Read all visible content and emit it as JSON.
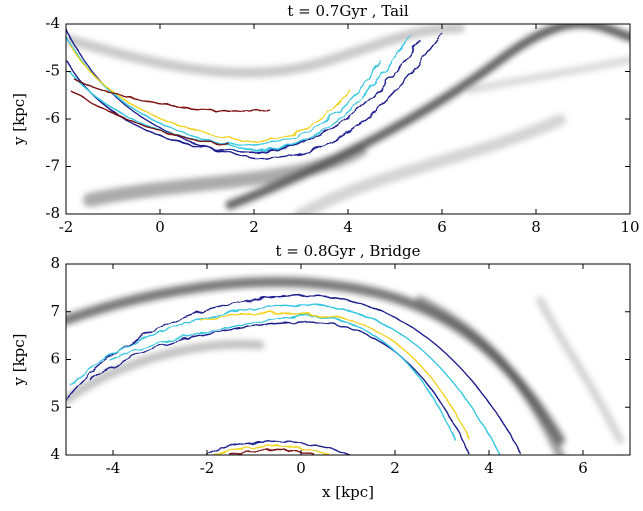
{
  "chart_data": [
    {
      "type": "contour",
      "title": "t = 0.7Gyr , Tail",
      "ylabel": "y [kpc]",
      "xlim": [
        -2,
        10
      ],
      "ylim": [
        -8,
        -4
      ],
      "xticks": [
        -2,
        0,
        2,
        4,
        6,
        8,
        10
      ],
      "yticks": [
        -8,
        -7,
        -6,
        -5,
        -4
      ]
    },
    {
      "type": "contour",
      "title": "t = 0.8Gyr , Bridge",
      "xlabel": "x [kpc]",
      "ylabel": "y [kpc]",
      "xlim": [
        -5,
        7
      ],
      "ylim": [
        4,
        8
      ],
      "xticks": [
        -4,
        -2,
        0,
        2,
        4,
        6
      ],
      "yticks": [
        4,
        5,
        6,
        7,
        8
      ]
    }
  ]
}
